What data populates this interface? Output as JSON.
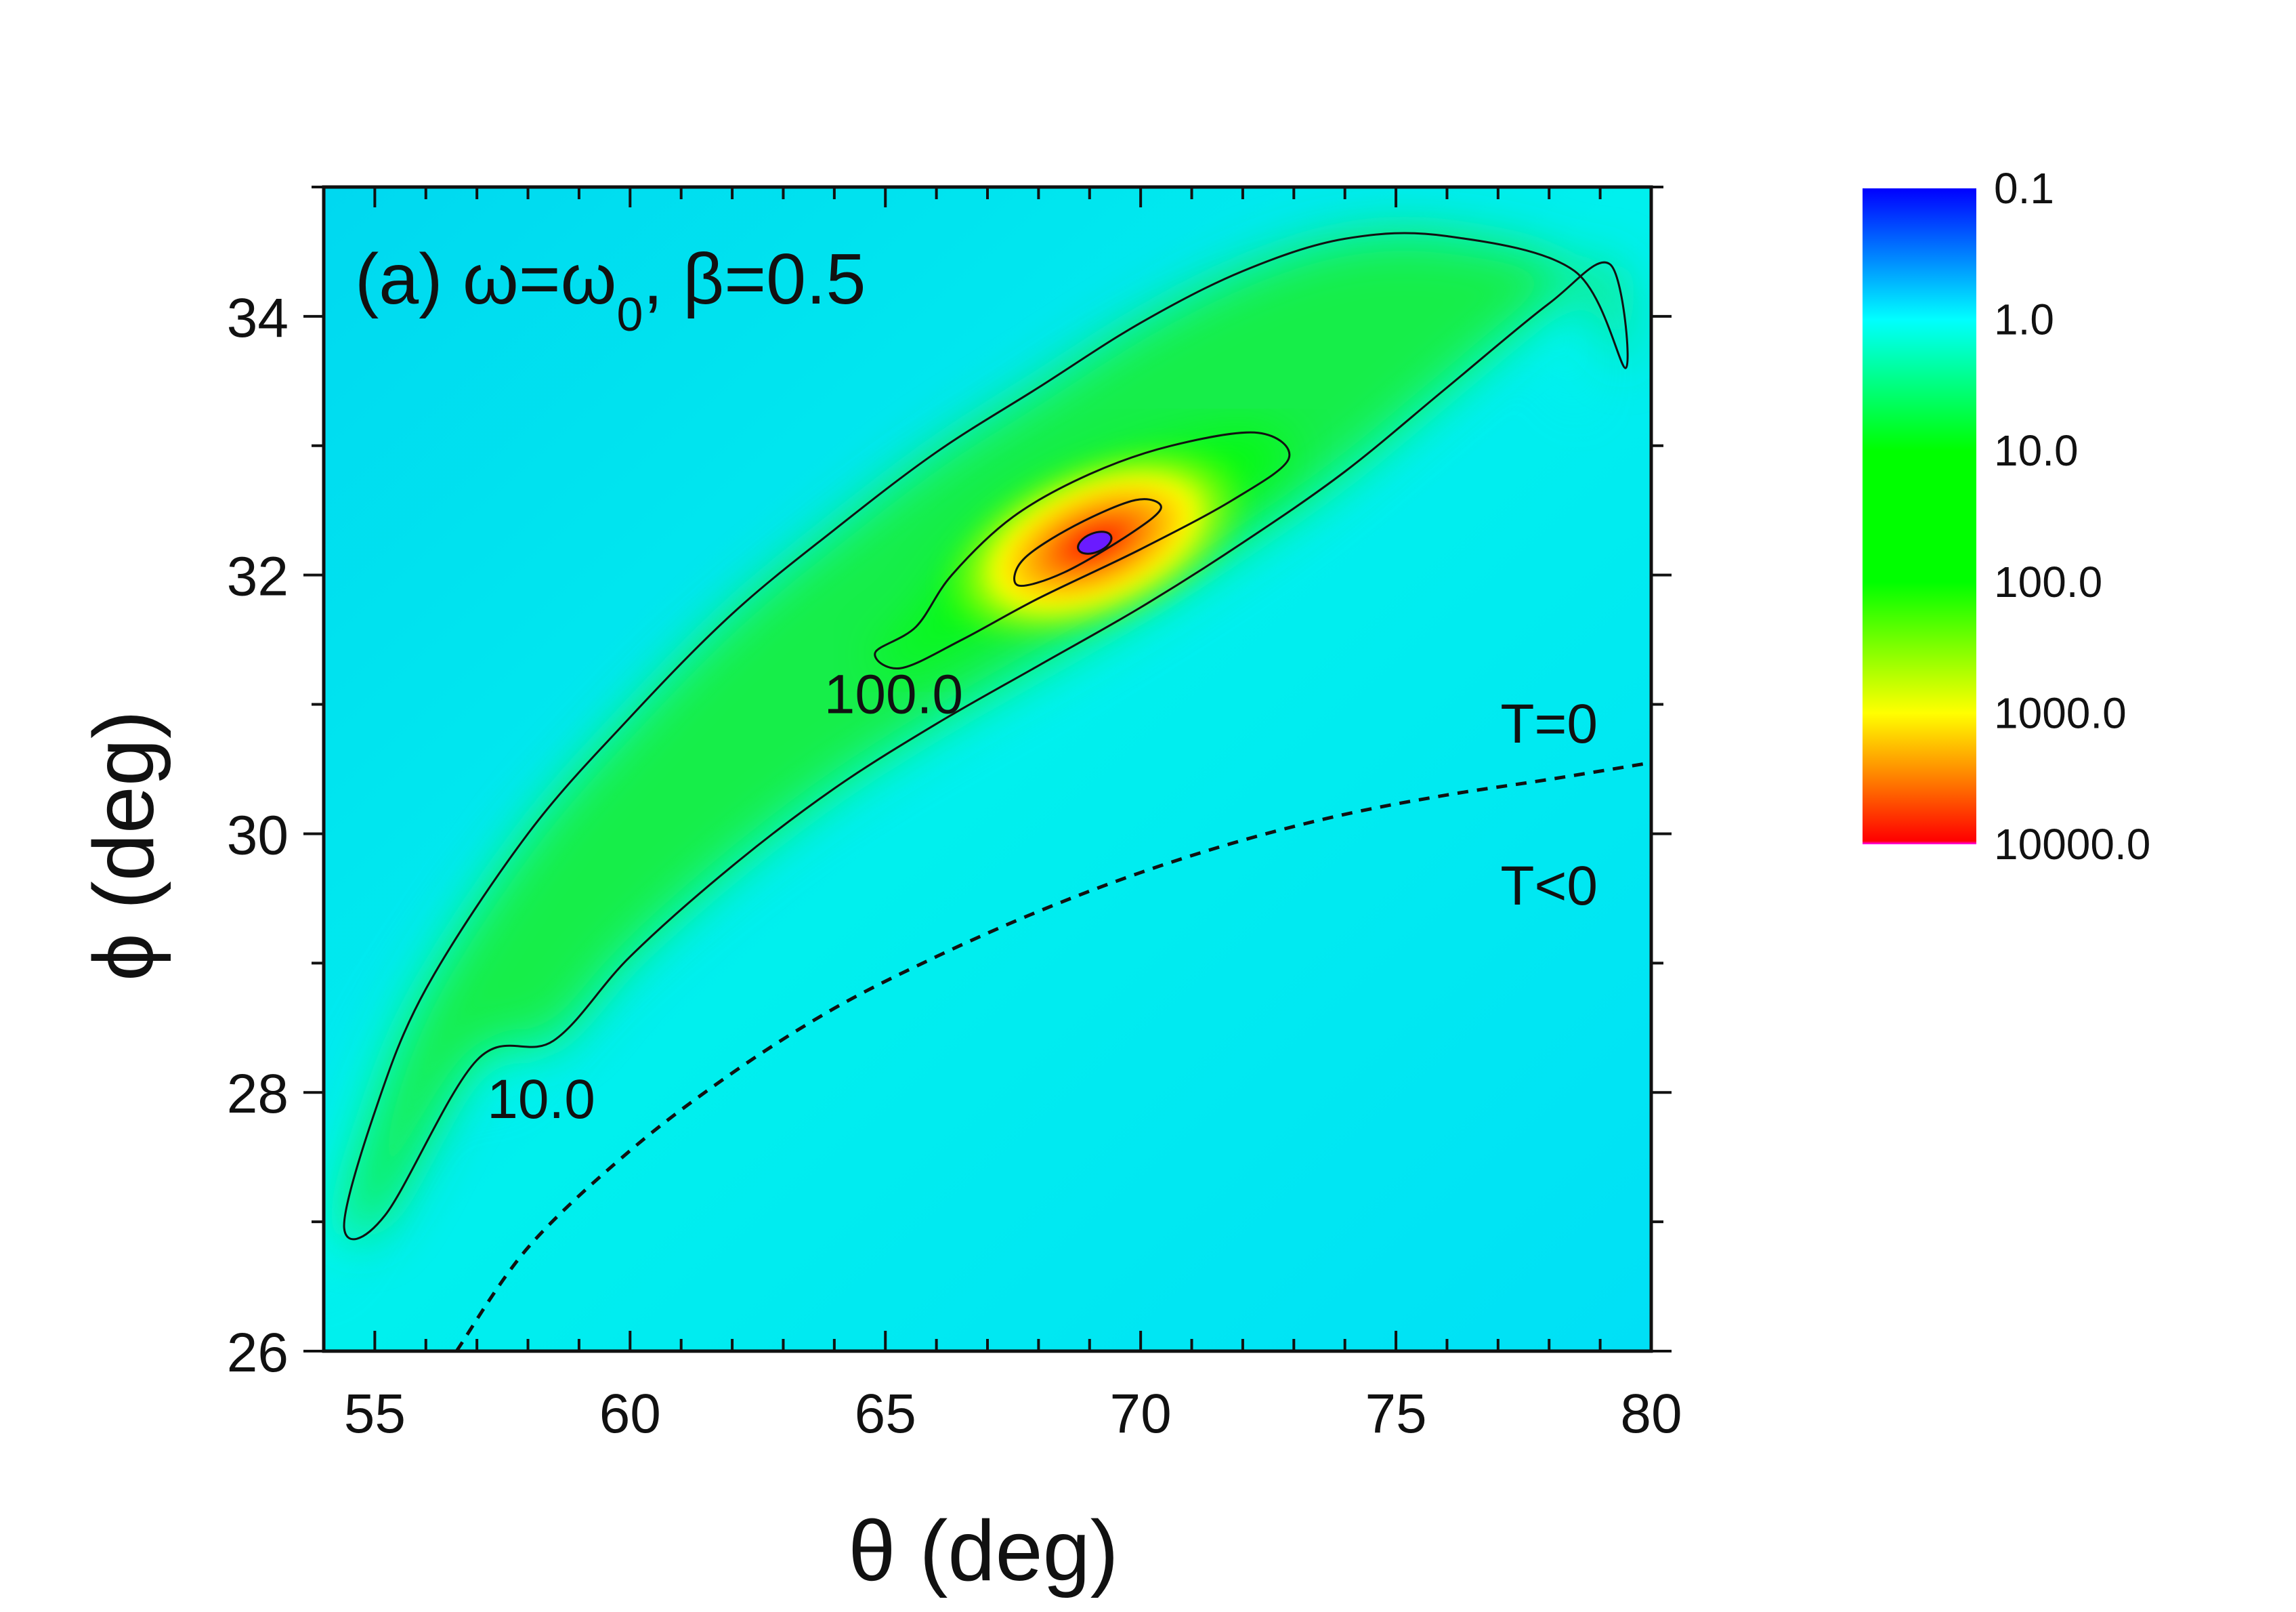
{
  "chart_data": {
    "type": "heatmap",
    "panel_label": {
      "prefix": "(a) ω=ω",
      "subscript": "0",
      "suffix": ", β=0.5"
    },
    "xlabel": "θ (deg)",
    "ylabel": "ϕ (deg)",
    "xlim": [
      54,
      80
    ],
    "ylim": [
      26,
      35
    ],
    "x_ticks": [
      "55",
      "60",
      "65",
      "70",
      "75",
      "80"
    ],
    "y_ticks": [
      "26",
      "28",
      "30",
      "32",
      "34"
    ],
    "x_tick_values": [
      55,
      60,
      65,
      70,
      75,
      80
    ],
    "y_tick_values": [
      26,
      28,
      30,
      32,
      34
    ],
    "grid": false,
    "color_scale": "log",
    "colorbar_labels": [
      "0.1",
      "1.0",
      "10.0",
      "100.0",
      "1000.0",
      "10000.0"
    ],
    "colorbar_colors": [
      "#0000ff",
      "#00ffff",
      "#00ff00",
      "#ffff00",
      "#ff0000",
      "#ff00ff"
    ],
    "peak": {
      "theta": 69.1,
      "phi": 32.25
    },
    "contours": [
      {
        "label": "10.0",
        "label_pos": {
          "theta": 57.2,
          "phi": 27.95
        },
        "points": [
          [
            58.5,
            28.4
          ],
          [
            60,
            29.05
          ],
          [
            62,
            29.75
          ],
          [
            64,
            30.35
          ],
          [
            66,
            30.85
          ],
          [
            68,
            31.3
          ],
          [
            70,
            31.75
          ],
          [
            72,
            32.25
          ],
          [
            74,
            32.8
          ],
          [
            76,
            33.45
          ],
          [
            78,
            34.1
          ],
          [
            79.2,
            34.4
          ],
          [
            79.5,
            33.6
          ],
          [
            78.5,
            34.35
          ],
          [
            76,
            34.62
          ],
          [
            74,
            34.6
          ],
          [
            72,
            34.35
          ],
          [
            70,
            33.95
          ],
          [
            68,
            33.45
          ],
          [
            66,
            32.95
          ],
          [
            64,
            32.35
          ],
          [
            62,
            31.7
          ],
          [
            60,
            30.9
          ],
          [
            58,
            30.0
          ],
          [
            56,
            28.8
          ],
          [
            55,
            27.85
          ],
          [
            54.4,
            26.95
          ],
          [
            55.2,
            27.05
          ],
          [
            57,
            28.25
          ]
        ]
      },
      {
        "label": "100.0",
        "label_pos": {
          "theta": 63.8,
          "phi": 31.08
        },
        "points": [
          [
            65.3,
            31.28
          ],
          [
            66.5,
            31.5
          ],
          [
            68,
            31.82
          ],
          [
            70,
            32.2
          ],
          [
            71.8,
            32.58
          ],
          [
            72.9,
            32.9
          ],
          [
            72.3,
            33.1
          ],
          [
            70.6,
            33.0
          ],
          [
            69,
            32.78
          ],
          [
            67.5,
            32.45
          ],
          [
            66.3,
            32.0
          ],
          [
            65.6,
            31.6
          ],
          [
            64.8,
            31.4
          ]
        ]
      },
      {
        "label": "",
        "points": [
          [
            67.6,
            31.92
          ],
          [
            68.5,
            32.02
          ],
          [
            69.8,
            32.32
          ],
          [
            70.4,
            32.52
          ],
          [
            69.9,
            32.58
          ],
          [
            68.7,
            32.38
          ],
          [
            67.7,
            32.12
          ]
        ]
      }
    ],
    "boundary": {
      "style": "dashed",
      "points": [
        [
          56.6,
          26.0
        ],
        [
          58,
          26.8
        ],
        [
          60,
          27.55
        ],
        [
          62,
          28.15
        ],
        [
          64,
          28.65
        ],
        [
          66,
          29.05
        ],
        [
          68,
          29.4
        ],
        [
          70,
          29.7
        ],
        [
          72,
          29.95
        ],
        [
          74,
          30.15
        ],
        [
          76,
          30.3
        ],
        [
          78,
          30.42
        ],
        [
          80,
          30.55
        ]
      ]
    },
    "annotations": [
      {
        "text": "T=0",
        "theta": 78.0,
        "phi": 30.85
      },
      {
        "text": "T<0",
        "theta": 78.0,
        "phi": 29.6
      }
    ]
  }
}
